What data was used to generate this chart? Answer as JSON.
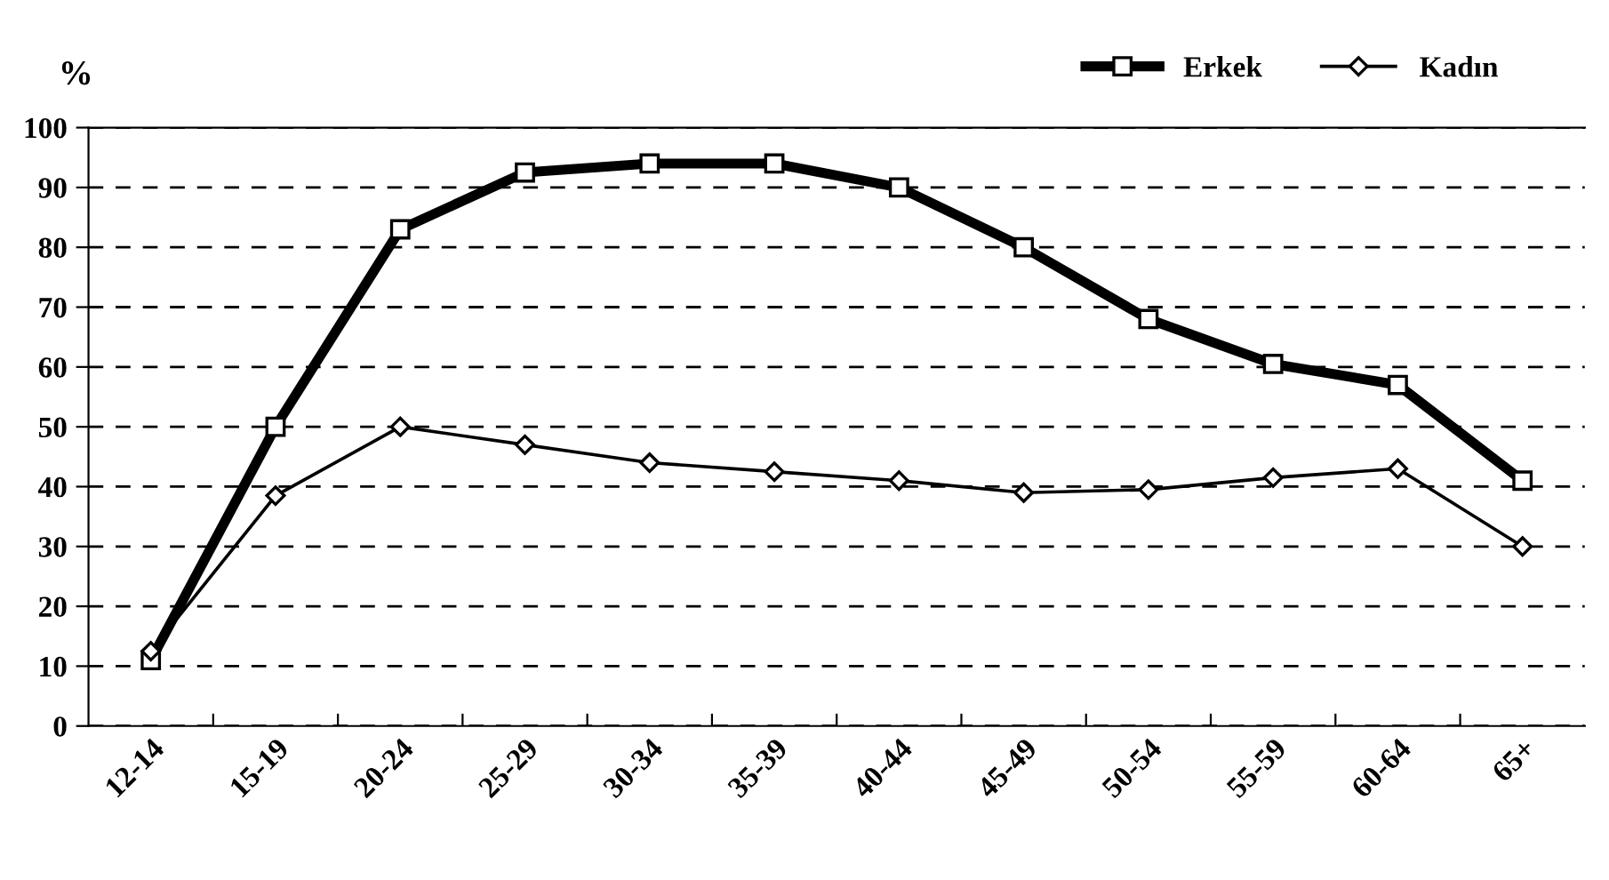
{
  "chart_data": {
    "type": "line",
    "ylabel": "%",
    "categories": [
      "12-14",
      "15-19",
      "20-24",
      "25-29",
      "30-34",
      "35-39",
      "40-44",
      "45-49",
      "50-54",
      "55-59",
      "60-64",
      "65+"
    ],
    "series": [
      {
        "name": "Erkek",
        "color": "#000000",
        "marker": "square",
        "values": [
          11,
          50,
          83,
          92.5,
          94,
          94,
          90,
          80,
          68,
          60.5,
          57,
          41
        ]
      },
      {
        "name": "Kadın",
        "color": "#000000",
        "marker": "diamond",
        "values": [
          12.5,
          38.5,
          50,
          47,
          44,
          42.5,
          41,
          39,
          39.5,
          41.5,
          43,
          30
        ]
      }
    ],
    "ylim": [
      0,
      100
    ],
    "yticks": [
      0,
      10,
      20,
      30,
      40,
      50,
      60,
      70,
      80,
      90,
      100
    ],
    "grid": "y",
    "legend": "top right",
    "line_style": "solid"
  }
}
